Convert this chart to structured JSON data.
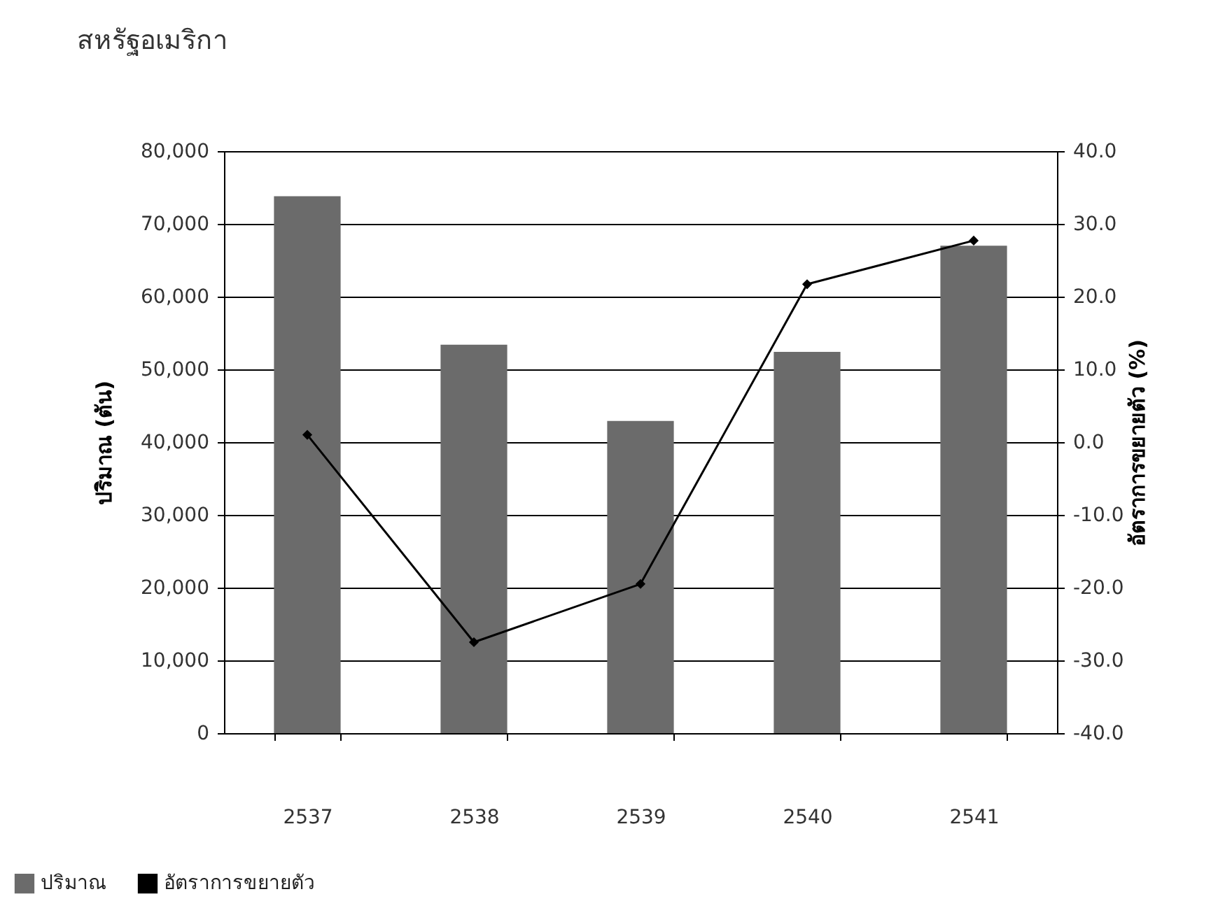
{
  "chart_data": {
    "type": "bar",
    "title": "สหรัฐอเมริกา",
    "categories": [
      "2537",
      "2538",
      "2539",
      "2540",
      "2541"
    ],
    "ylabel": "ปริมาณ (ตัน)",
    "y2label": "อัตราการขยายตัว (%)",
    "ylim": [
      0,
      80000
    ],
    "yticks": [
      {
        "value": 0,
        "label": "0"
      },
      {
        "value": 10000,
        "label": "10,000"
      },
      {
        "value": 20000,
        "label": "20,000"
      },
      {
        "value": 30000,
        "label": "30,000"
      },
      {
        "value": 40000,
        "label": "40,000"
      },
      {
        "value": 50000,
        "label": "50,000"
      },
      {
        "value": 60000,
        "label": "60,000"
      },
      {
        "value": 70000,
        "label": "70,000"
      },
      {
        "value": 80000,
        "label": "80,000"
      }
    ],
    "y2lim": [
      -40,
      40
    ],
    "y2ticks": [
      {
        "value": -40,
        "label": "-40.0"
      },
      {
        "value": -30,
        "label": "-30.0"
      },
      {
        "value": -20,
        "label": "-20.0"
      },
      {
        "value": -10,
        "label": "-10.0"
      },
      {
        "value": 0,
        "label": "0.0"
      },
      {
        "value": 10,
        "label": "10.0"
      },
      {
        "value": 20,
        "label": "20.0"
      },
      {
        "value": 30,
        "label": "30.0"
      },
      {
        "value": 40,
        "label": "40.0"
      }
    ],
    "grid": "y",
    "legend": "bottom left",
    "marker": "diamond",
    "series": [
      {
        "name": "ปริมาณ",
        "color": "#6b6b6b",
        "values": [
          73800,
          53400,
          42900,
          52400,
          67000
        ]
      },
      {
        "name": "อัตราการขยายตัว",
        "type": "line",
        "axis": "y2",
        "color": "#000000",
        "values": [
          1,
          -27.5,
          -19.5,
          21.7,
          27.7
        ]
      }
    ]
  }
}
